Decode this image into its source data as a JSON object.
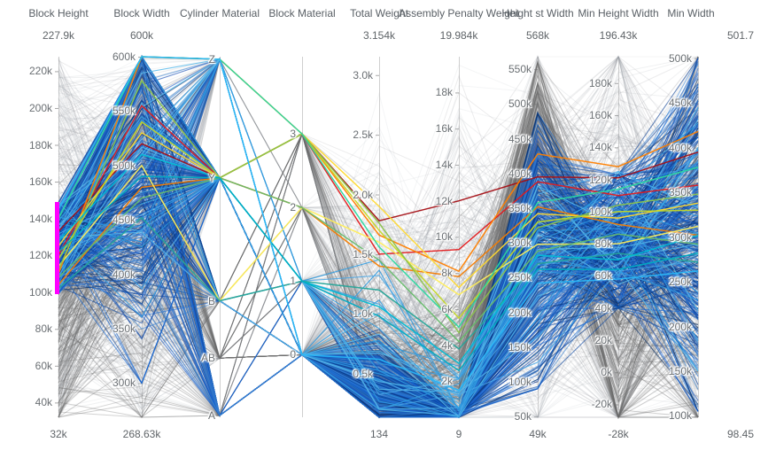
{
  "chart": {
    "background": "#ffffff",
    "axis_line_color": "#cfcfcf",
    "tick_mark_color": "#a8a8a8",
    "title_color": "#5a6066",
    "tick_label_color": "#6a6f73",
    "brush_color": "#ff00ff"
  },
  "chart_data": {
    "type": "parallel-coordinates",
    "title": "",
    "legend": null,
    "axes": [
      {
        "name": "Block Height",
        "max_label": "227.9k",
        "min_label": "32k",
        "domain": [
          32000,
          227900
        ],
        "ticks": [
          {
            "v": 220000,
            "label": "220k"
          },
          {
            "v": 200000,
            "label": "200k"
          },
          {
            "v": 180000,
            "label": "180k"
          },
          {
            "v": 160000,
            "label": "160k"
          },
          {
            "v": 140000,
            "label": "140k"
          },
          {
            "v": 120000,
            "label": "120k"
          },
          {
            "v": 100000,
            "label": "100k"
          },
          {
            "v": 80000,
            "label": "80k"
          },
          {
            "v": 60000,
            "label": "60k"
          },
          {
            "v": 40000,
            "label": "40k"
          }
        ]
      },
      {
        "name": "Block Width",
        "max_label": "600k",
        "min_label": "268.63k",
        "domain": [
          268630,
          600000
        ],
        "ticks": [
          {
            "v": 600000,
            "label": "600k"
          },
          {
            "v": 550000,
            "label": "550k"
          },
          {
            "v": 500000,
            "label": "500k"
          },
          {
            "v": 450000,
            "label": "450k"
          },
          {
            "v": 400000,
            "label": "400k"
          },
          {
            "v": 350000,
            "label": "350k"
          },
          {
            "v": 300000,
            "label": "300k"
          }
        ]
      },
      {
        "name": "Cylinder Material",
        "max_label": "",
        "min_label": "",
        "categories": [
          {
            "label": "Z",
            "f": 0.007
          },
          {
            "label": "Y",
            "f": 0.336
          },
          {
            "label": "B",
            "f": 0.677
          },
          {
            "label": "AB",
            "f": 0.836
          },
          {
            "label": "A",
            "f": 0.995
          }
        ]
      },
      {
        "name": "Block Material",
        "max_label": "",
        "min_label": "",
        "domain": [
          -0.85,
          4.05
        ],
        "ticks": [
          {
            "v": 3,
            "label": "3"
          },
          {
            "v": 2,
            "label": "2"
          },
          {
            "v": 1,
            "label": "1"
          },
          {
            "v": 0,
            "label": "0"
          }
        ]
      },
      {
        "name": "Total Weight",
        "max_label": "3.154k",
        "min_label": "134",
        "domain": [
          134,
          3154
        ],
        "ticks": [
          {
            "v": 3000,
            "label": "3.0k"
          },
          {
            "v": 2500,
            "label": "2.5k"
          },
          {
            "v": 2000,
            "label": "2.0k"
          },
          {
            "v": 1500,
            "label": "1.5k"
          },
          {
            "v": 1000,
            "label": "1.0k"
          },
          {
            "v": 500,
            "label": "0.5k"
          }
        ]
      },
      {
        "name": "Assembly Penalty Weight",
        "max_label": "19.984k",
        "min_label": "9",
        "domain": [
          9,
          19984
        ],
        "ticks": [
          {
            "v": 18000,
            "label": "18k"
          },
          {
            "v": 16000,
            "label": "16k"
          },
          {
            "v": 14000,
            "label": "14k"
          },
          {
            "v": 12000,
            "label": "12k"
          },
          {
            "v": 10000,
            "label": "10k"
          },
          {
            "v": 8000,
            "label": "8k"
          },
          {
            "v": 6000,
            "label": "6k"
          },
          {
            "v": 4000,
            "label": "4k"
          },
          {
            "v": 2000,
            "label": "2k"
          }
        ]
      },
      {
        "name": "Height st Width",
        "max_label": "568k",
        "min_label": "49k",
        "domain": [
          49000,
          568000
        ],
        "ticks": [
          {
            "v": 550000,
            "label": "550k"
          },
          {
            "v": 500000,
            "label": "500k"
          },
          {
            "v": 450000,
            "label": "450k"
          },
          {
            "v": 400000,
            "label": "400k"
          },
          {
            "v": 350000,
            "label": "350k"
          },
          {
            "v": 300000,
            "label": "300k"
          },
          {
            "v": 250000,
            "label": "250k"
          },
          {
            "v": 200000,
            "label": "200k"
          },
          {
            "v": 150000,
            "label": "150k"
          },
          {
            "v": 100000,
            "label": "100k"
          },
          {
            "v": 50000,
            "label": "50k"
          }
        ]
      },
      {
        "name": "Min Height Width",
        "max_label": "196.43k",
        "min_label": "-28k",
        "domain": [
          -28000,
          196430
        ],
        "ticks": [
          {
            "v": 180000,
            "label": "180k"
          },
          {
            "v": 160000,
            "label": "160k"
          },
          {
            "v": 140000,
            "label": "140k"
          },
          {
            "v": 120000,
            "label": "120k"
          },
          {
            "v": 100000,
            "label": "100k"
          },
          {
            "v": 80000,
            "label": "80k"
          },
          {
            "v": 60000,
            "label": "60k"
          },
          {
            "v": 40000,
            "label": "40k"
          },
          {
            "v": 20000,
            "label": "20k"
          },
          {
            "v": 0,
            "label": "0k"
          },
          {
            "v": -20000,
            "label": "-20k"
          }
        ]
      },
      {
        "name": "Min Width",
        "max_label": "501.7",
        "min_label": "98.45",
        "range_labels_side": "right",
        "domain": [
          98450,
          501700
        ],
        "ticks": [
          {
            "v": 500000,
            "label": "500k"
          },
          {
            "v": 450000,
            "label": "450k"
          },
          {
            "v": 400000,
            "label": "400k"
          },
          {
            "v": 350000,
            "label": "350k"
          },
          {
            "v": 300000,
            "label": "300k"
          },
          {
            "v": 250000,
            "label": "250k"
          },
          {
            "v": 200000,
            "label": "200k"
          },
          {
            "v": 150000,
            "label": "150k"
          },
          {
            "v": 100000,
            "label": "100k"
          }
        ]
      }
    ],
    "brush": {
      "axis_index": 0,
      "range": [
        99000,
        149000
      ]
    },
    "line_groups": [
      {
        "name": "background-faint",
        "seed": 11,
        "count": 430,
        "width": 1,
        "opacity": 0.15,
        "palette": [
          "#9aa0a6",
          "#b8bcc2",
          "#7e8288"
        ],
        "spec": [
          {
            "u": [
              32000,
              227900
            ]
          },
          {
            "u": [
              268630,
              600000
            ]
          },
          {
            "c": {
              "Z": 18,
              "Y": 18,
              "B": 28,
              "AB": 16,
              "A": 20
            }
          },
          {
            "c": {
              "0": 45,
              "1": 18,
              "2": 18,
              "3": 19
            }
          },
          {
            "g": [
              700,
              800,
              134,
              3154
            ]
          },
          {
            "g": [
              4000,
              6000,
              9,
              19984
            ]
          },
          {
            "g": [
              300000,
              140000,
              49000,
              568000
            ]
          },
          {
            "g": [
              70000,
              75000,
              -28000,
              196430
            ]
          },
          {
            "g": [
              280000,
              120000,
              98450,
              501700
            ]
          }
        ]
      },
      {
        "name": "background-dark",
        "seed": 22,
        "count": 185,
        "width": 1,
        "opacity": 0.3,
        "palette": [
          "#6b6b6b",
          "#7a7a7a",
          "#5f5f5f"
        ],
        "spec": [
          {
            "g": [
              80000,
              35000,
              32000,
              190000
            ]
          },
          {
            "g": [
              470000,
              90000,
              268630,
              600000
            ]
          },
          {
            "c": {
              "B": 30,
              "AB": 22,
              "A": 26,
              "Y": 14,
              "Z": 8
            }
          },
          {
            "c": {
              "0": 70,
              "1": 10,
              "2": 10,
              "3": 10
            }
          },
          {
            "g": [
              450,
              350,
              134,
              2500
            ]
          },
          {
            "g": [
              1800,
              2800,
              9,
              19984
            ]
          },
          {
            "g": [
              450000,
              70000,
              100000,
              560000
            ]
          },
          {
            "g": [
              25000,
              45000,
              -28000,
              196430
            ]
          },
          {
            "g": [
              300000,
              130000,
              98450,
              501700
            ]
          }
        ]
      },
      {
        "name": "selected-blue",
        "seed": 33,
        "count": 345,
        "width": 1.1,
        "opacity": 0.6,
        "palette": [
          "#08306b",
          "#0a3d91",
          "#1048b0",
          "#1f5fc8",
          "#1366d6",
          "#0d47a1",
          "#2070d0",
          "#3b82d0"
        ],
        "spec": [
          {
            "u": [
              99000,
              149000
            ]
          },
          {
            "g": [
              490000,
              80000,
              300000,
              600000
            ],
            "spike": [
              600000,
              0.18
            ]
          },
          {
            "c": {
              "Y": 62,
              "Z": 16,
              "A": 13,
              "B": 9
            }
          },
          {
            "c": {
              "0": 93,
              "1": 7
            }
          },
          {
            "g": [
              380,
              200,
              134,
              1200
            ]
          },
          {
            "g": [
              120,
              150,
              9,
              1800
            ]
          },
          {
            "g": [
              280000,
              95000,
              90000,
              487000
            ]
          },
          {
            "g": [
              82000,
              26000,
              40000,
              123000
            ]
          },
          {
            "g": [
              320000,
              95000,
              105000,
              500000
            ]
          }
        ]
      },
      {
        "name": "selected-lightblue",
        "seed": 44,
        "count": 30,
        "width": 1.1,
        "opacity": 0.85,
        "palette": [
          "#2f9be0",
          "#4aa8e8",
          "#57b8ea"
        ],
        "spec": [
          {
            "u": [
              99000,
              149000
            ]
          },
          {
            "g": [
              520000,
              70000,
              300000,
              600000
            ]
          },
          {
            "c": {
              "Y": 55,
              "Z": 30,
              "B": 15
            }
          },
          {
            "c": {
              "0": 60,
              "1": 40
            }
          },
          {
            "g": [
              700,
              300,
              200,
              1500
            ]
          },
          {
            "g": [
              900,
              900,
              9,
              4000
            ]
          },
          {
            "g": [
              280000,
              80000,
              120000,
              450000
            ]
          },
          {
            "g": [
              85000,
              25000,
              45000,
              125000
            ]
          },
          {
            "g": [
              310000,
              80000,
              150000,
              460000
            ]
          }
        ]
      }
    ],
    "highlight_lines": [
      {
        "color": "#a50f15",
        "values": [
          133000,
          520000,
          "Y",
          3,
          1780,
          12000,
          395000,
          121000,
          395000
        ]
      },
      {
        "color": "#e31a1c",
        "values": [
          120000,
          555000,
          "Y",
          3,
          1500,
          9300,
          388000,
          110000,
          358000
        ]
      },
      {
        "color": "#ff7f00",
        "values": [
          110000,
          600000,
          "Z",
          3,
          1660,
          8100,
          428000,
          128000,
          418000
        ]
      },
      {
        "color": "#f57c00",
        "values": [
          104000,
          480000,
          "Y",
          2,
          1400,
          7800,
          352000,
          92000,
          302000
        ]
      },
      {
        "color": "#ffd92f",
        "values": [
          125000,
          530000,
          "Y",
          3,
          1900,
          7200,
          342000,
          96000,
          338000
        ]
      },
      {
        "color": "#ffee58",
        "values": [
          114000,
          500000,
          "B",
          2,
          1600,
          6800,
          298000,
          80000,
          312000
        ]
      },
      {
        "color": "#c3d825",
        "values": [
          118000,
          540000,
          "Y",
          3,
          1700,
          5500,
          330000,
          100000,
          330000
        ]
      },
      {
        "color": "#8bc34a",
        "values": [
          112000,
          578000,
          "Y",
          3,
          1760,
          4700,
          322000,
          104000,
          348000
        ]
      },
      {
        "color": "#66bb6a",
        "values": [
          108000,
          470000,
          "Y",
          2,
          1450,
          4200,
          288000,
          86000,
          292000
        ]
      },
      {
        "color": "#2bd99f",
        "values": [
          140000,
          600000,
          "Z",
          3,
          1560,
          5000,
          358000,
          114000,
          378000
        ]
      },
      {
        "color": "#26a69a",
        "values": [
          102000,
          452000,
          "B",
          1,
          1200,
          3800,
          270000,
          74000,
          272000
        ]
      },
      {
        "color": "#00bcd4",
        "values": [
          128000,
          510000,
          "Y",
          1,
          1060,
          3000,
          282000,
          70000,
          302000
        ]
      },
      {
        "color": "#00acc1",
        "values": [
          122000,
          490000,
          "Y",
          1,
          980,
          2600,
          262000,
          64000,
          282000
        ]
      },
      {
        "color": "#29b6f6",
        "values": [
          145000,
          600000,
          "Z",
          0,
          620,
          1500,
          242000,
          58000,
          262000
        ]
      }
    ]
  }
}
